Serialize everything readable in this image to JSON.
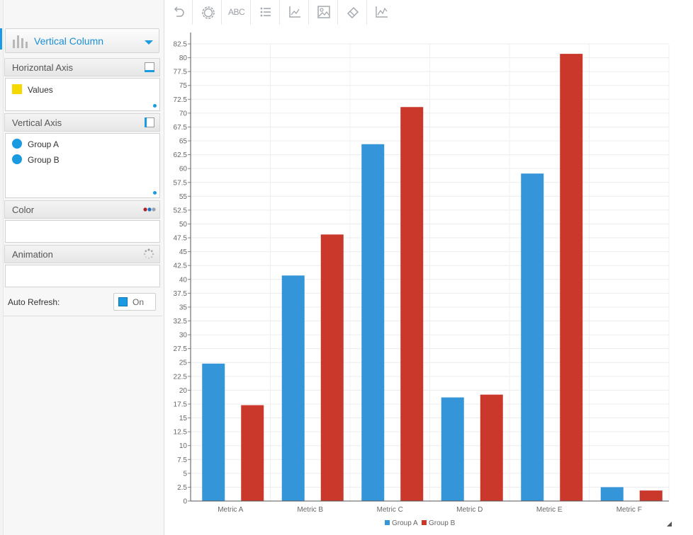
{
  "panel": {
    "chart_type_label": "Vertical Column",
    "horizontal_axis": {
      "title": "Horizontal Axis",
      "fields": [
        {
          "label": "Values"
        }
      ]
    },
    "vertical_axis": {
      "title": "Vertical Axis",
      "fields": [
        {
          "label": "Group A"
        },
        {
          "label": "Group B"
        }
      ]
    },
    "color": {
      "title": "Color"
    },
    "animation": {
      "title": "Animation"
    },
    "auto_refresh": {
      "label": "Auto Refresh:",
      "toggle_label": "On",
      "enabled": true
    }
  },
  "toolbar": {
    "buttons": [
      {
        "name": "undo-icon"
      },
      {
        "name": "settings-icon"
      },
      {
        "name": "labels-text-icon",
        "text": "ABC"
      },
      {
        "name": "legend-list-icon"
      },
      {
        "name": "axis-icon"
      },
      {
        "name": "image-icon"
      },
      {
        "name": "eraser-icon"
      },
      {
        "name": "line-chart-icon"
      }
    ]
  },
  "colors": {
    "group_a": "#3595d9",
    "group_b": "#c9382a",
    "accent": "#1a9ae0",
    "yellow": "#f5d800"
  },
  "chart_data": {
    "type": "bar",
    "categories": [
      "Metric A",
      "Metric B",
      "Metric C",
      "Metric D",
      "Metric E",
      "Metric F"
    ],
    "series": [
      {
        "name": "Group A",
        "values": [
          24.8,
          40.7,
          64.4,
          18.7,
          59.1,
          2.5
        ]
      },
      {
        "name": "Group B",
        "values": [
          17.3,
          48.1,
          71.1,
          19.2,
          80.7,
          1.9
        ]
      }
    ],
    "ylim": [
      0,
      82.5
    ],
    "y_ticks": [
      "0",
      "2.5",
      "5",
      "7.5",
      "10",
      "12.5",
      "15",
      "17.5",
      "20",
      "22.5",
      "25",
      "27.5",
      "30",
      "32.5",
      "35",
      "37.5",
      "40",
      "42.5",
      "45",
      "47.5",
      "50",
      "52.5",
      "55",
      "57.5",
      "60",
      "62.5",
      "65",
      "67.5",
      "70",
      "72.5",
      "75",
      "77.5",
      "80",
      "82.5"
    ],
    "grid": true,
    "legend_position": "bottom"
  }
}
